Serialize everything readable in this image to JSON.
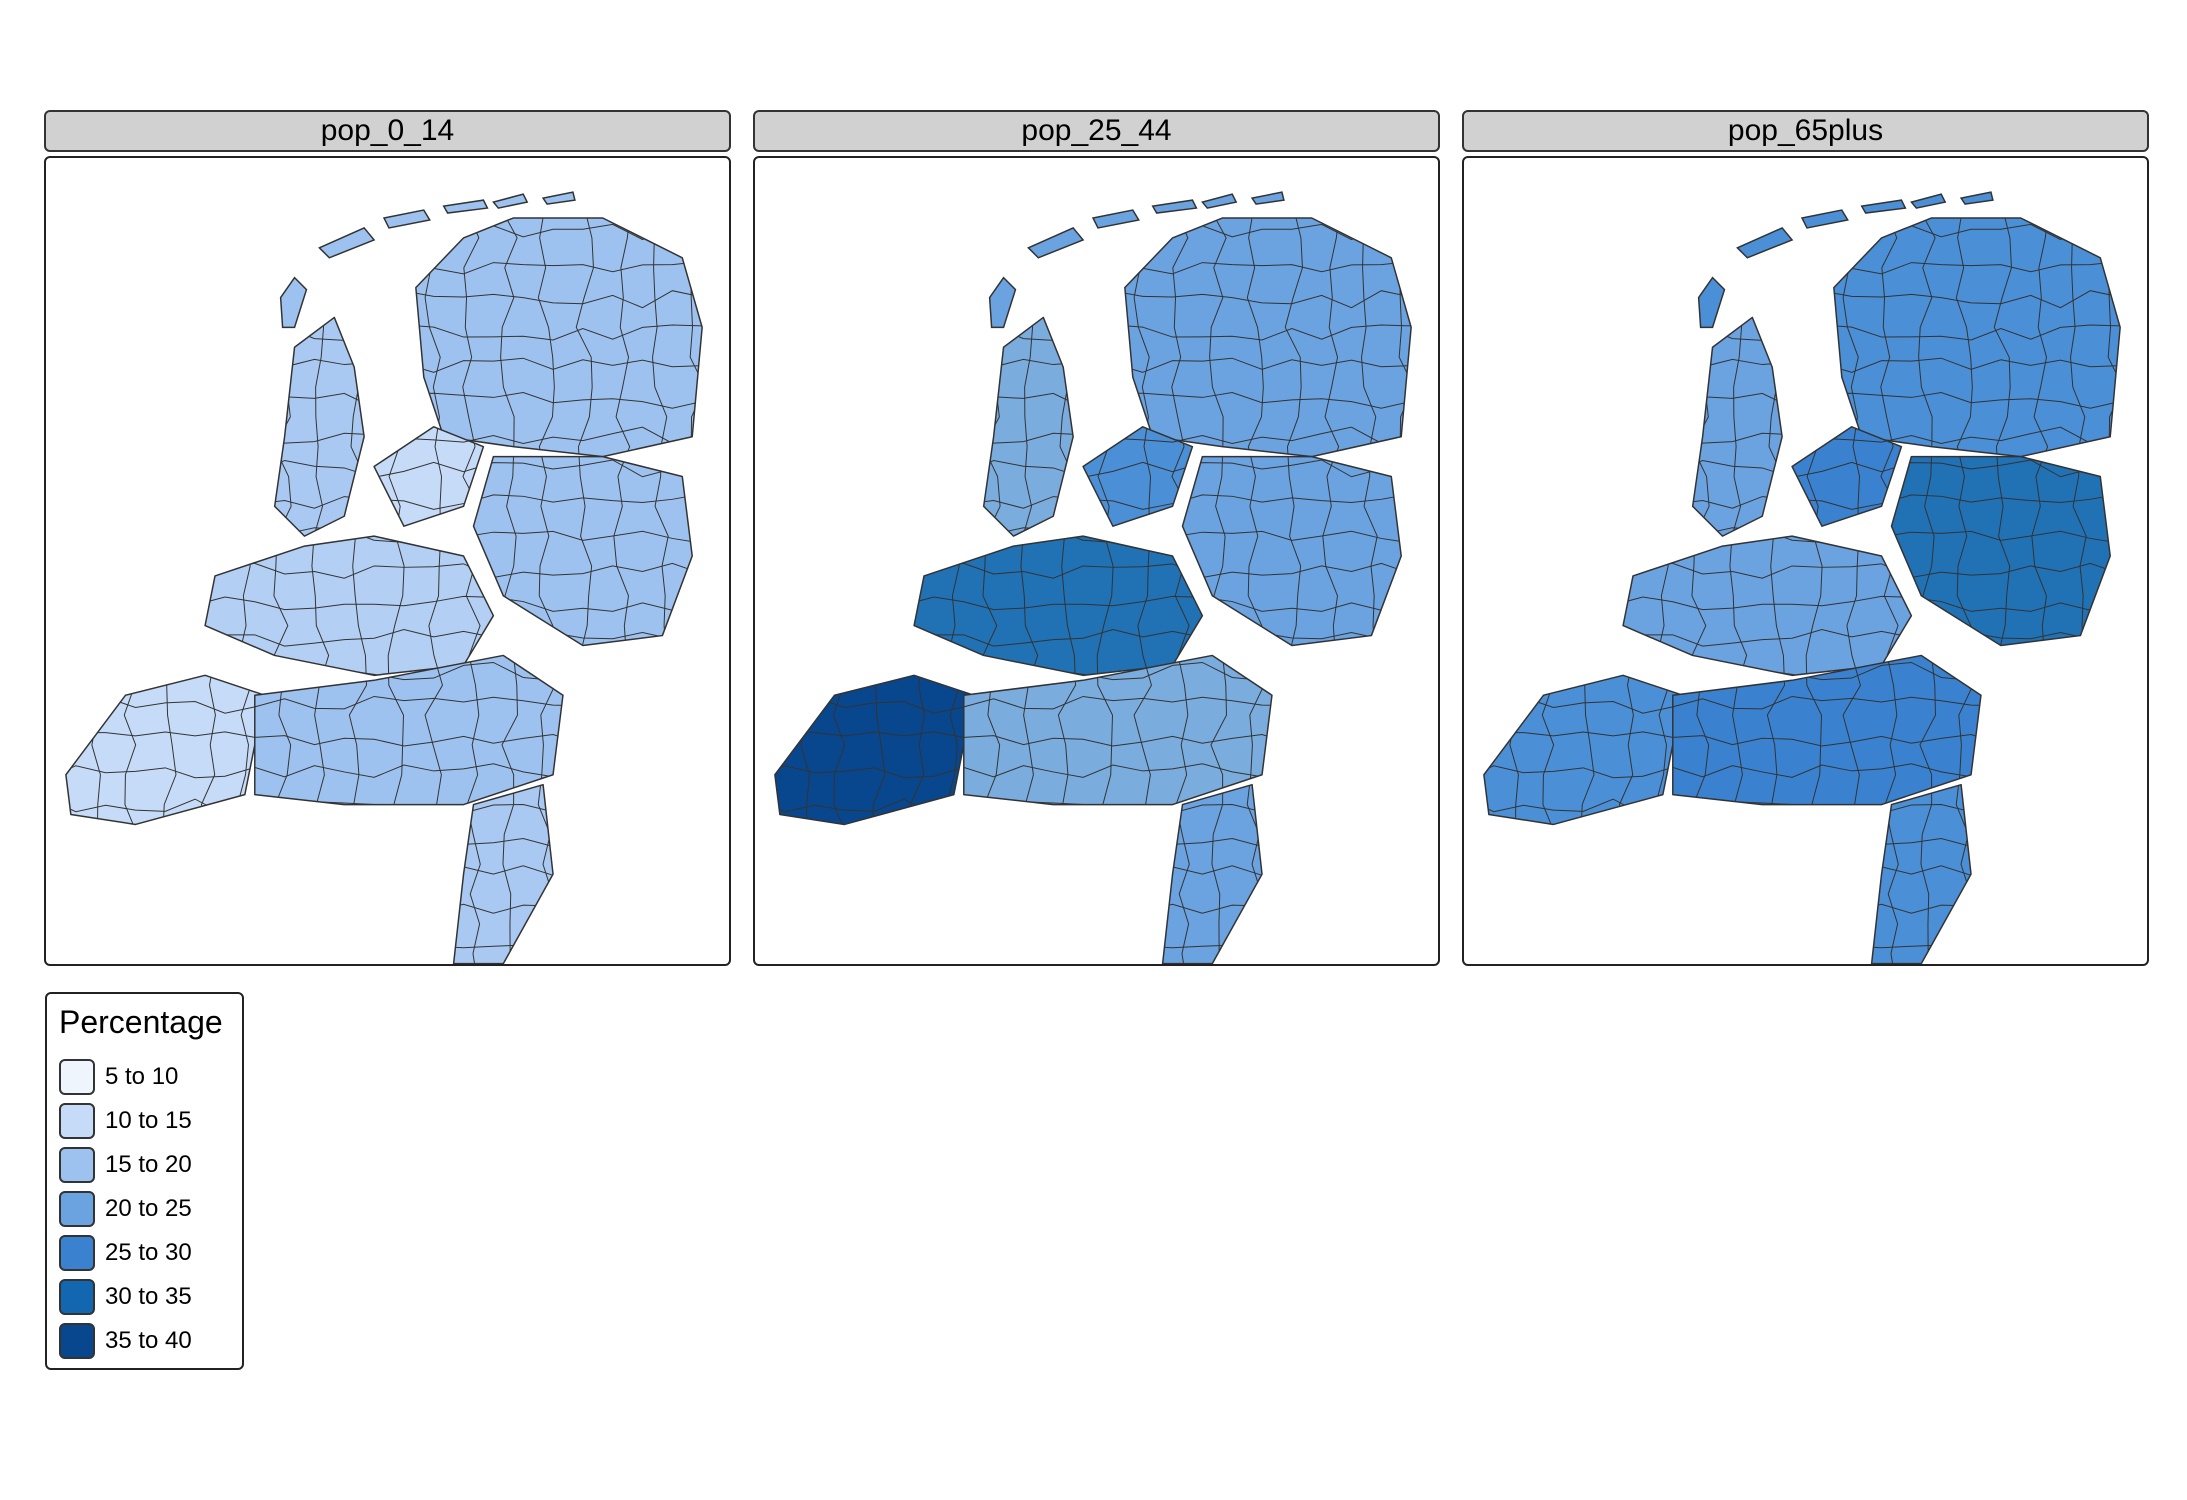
{
  "panels": [
    {
      "title": "pop_0_14",
      "fills": [
        "#9ec2ef",
        "#a9c9f2",
        "#c6dbf7",
        "#9ec2ef",
        "#b3cff4",
        "#c6dbf7",
        "#9ec2ef",
        "#a9c9f2"
      ]
    },
    {
      "title": "pop_25_44",
      "fills": [
        "#6ba2e0",
        "#7aacde",
        "#4b8fd6",
        "#6ba2e0",
        "#2171b5",
        "#08478d",
        "#7aacde",
        "#6ba2e0"
      ]
    },
    {
      "title": "pop_65plus",
      "fills": [
        "#4b8fd6",
        "#6ba2e0",
        "#3a82cf",
        "#2171b5",
        "#6ba2e0",
        "#4b8fd6",
        "#3a82cf",
        "#4b8fd6"
      ]
    }
  ],
  "legend": {
    "title": "Percentage",
    "items": [
      {
        "label": "5 to 10",
        "color": "#eef5fd"
      },
      {
        "label": "10 to 15",
        "color": "#c6dbf7"
      },
      {
        "label": "15 to 20",
        "color": "#9ec2ef"
      },
      {
        "label": "20 to 25",
        "color": "#6ba2e0"
      },
      {
        "label": "25 to 30",
        "color": "#3a82cf"
      },
      {
        "label": "30 to 35",
        "color": "#1367b0"
      },
      {
        "label": "35 to 40",
        "color": "#08478d"
      }
    ]
  }
}
